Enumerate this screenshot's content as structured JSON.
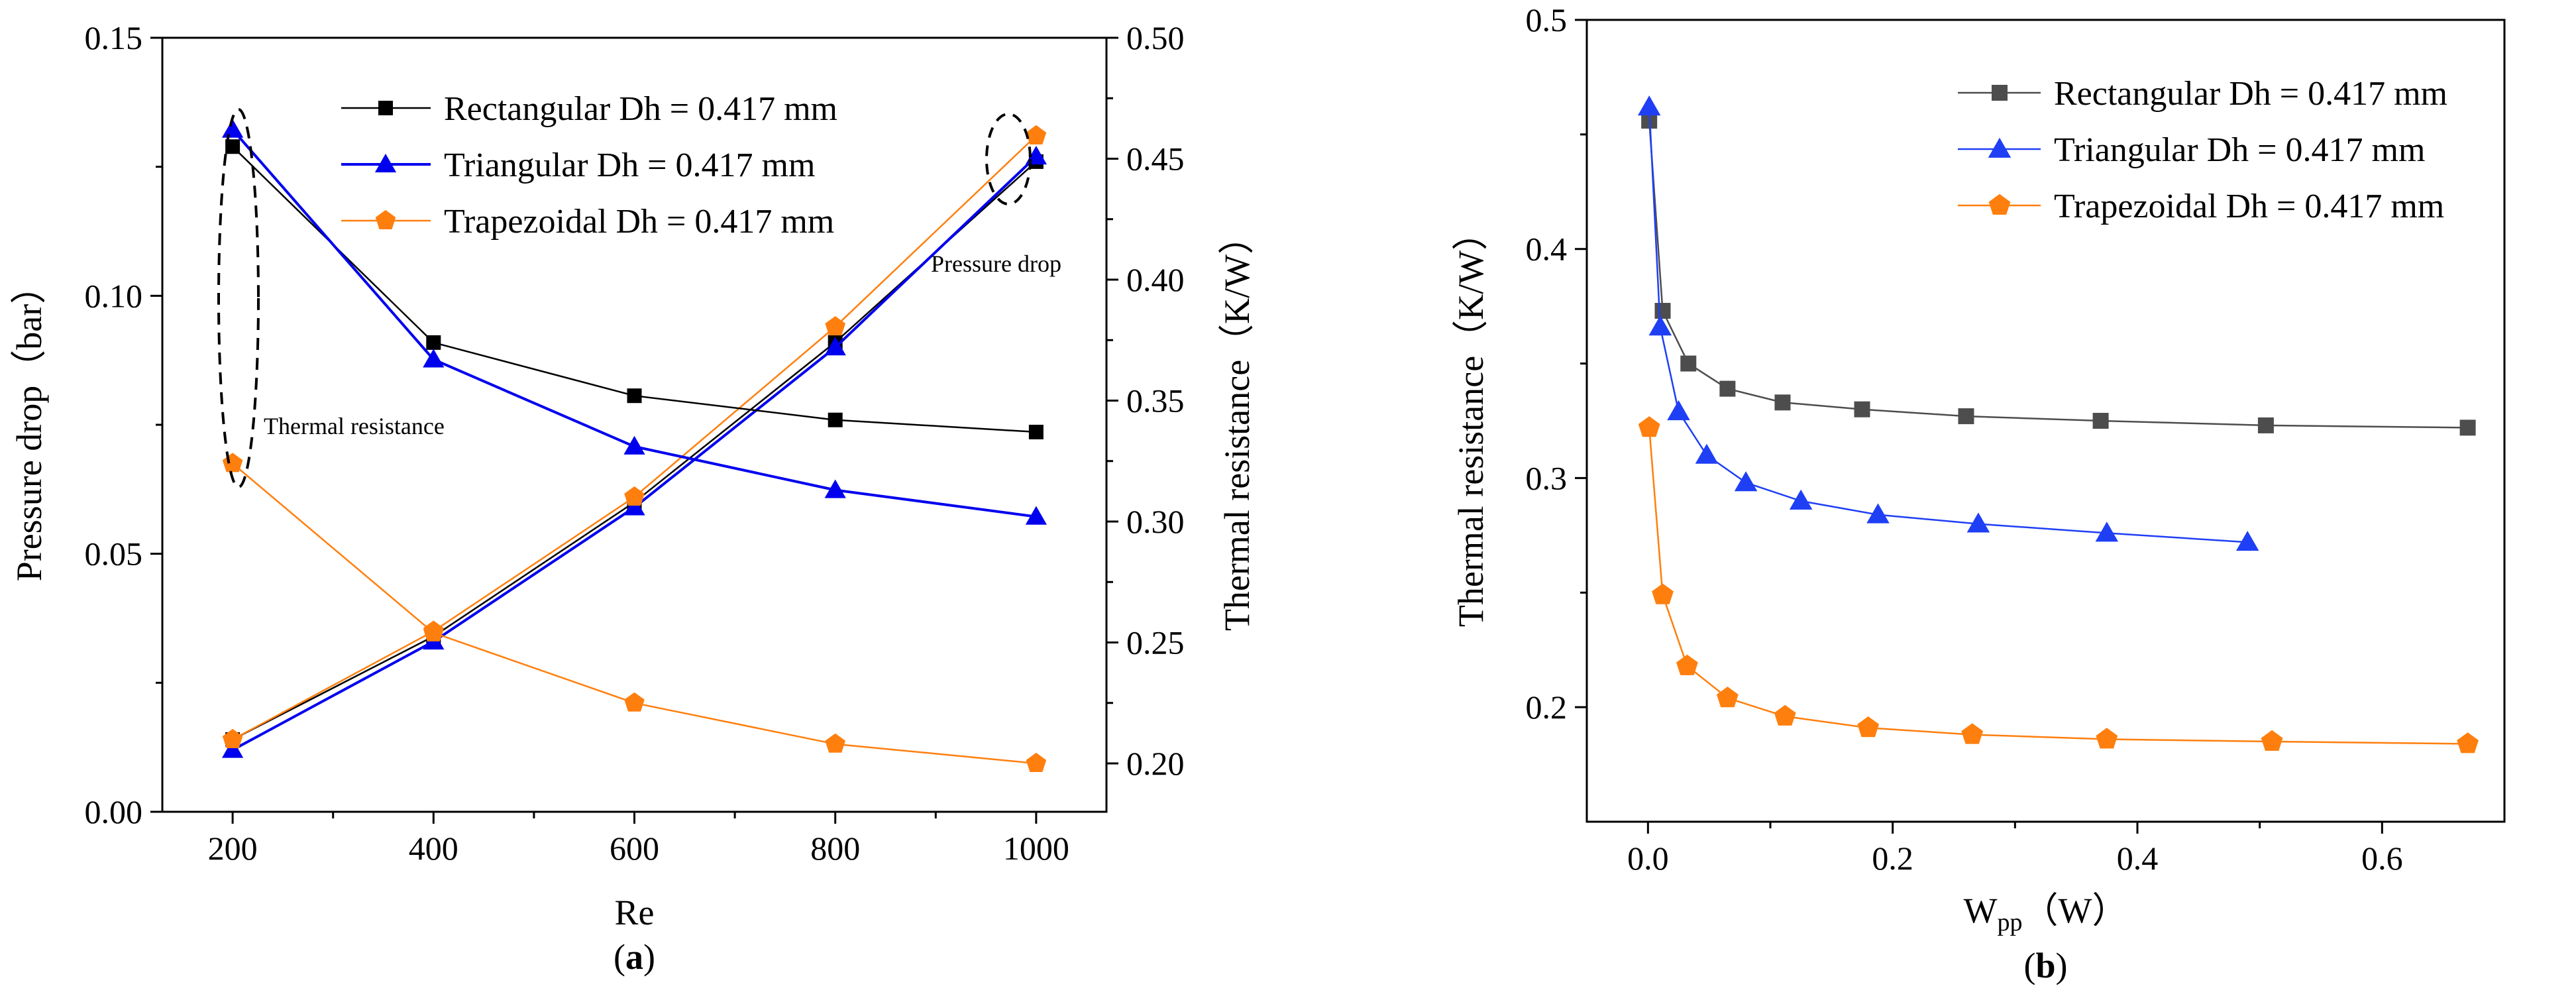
{
  "chart_data": [
    {
      "type": "line",
      "panel_label": "(a)",
      "panel_letter": "a",
      "xlabel": "Re",
      "ylabel_left": "Pressure drop（bar）",
      "ylabel_right": "Thermal resistance（K/W）",
      "x_ticks": [
        200,
        400,
        600,
        800,
        1000
      ],
      "x_tick_labels": [
        "200",
        "400",
        "600",
        "800",
        "1000"
      ],
      "xlim": [
        130,
        1070
      ],
      "y_left_ticks": [
        0.0,
        0.05,
        0.1,
        0.15
      ],
      "y_left_tick_labels": [
        "0.00",
        "0.05",
        "0.10",
        "0.15"
      ],
      "ylim_left": [
        0,
        0.15
      ],
      "y_right_ticks": [
        0.2,
        0.25,
        0.3,
        0.35,
        0.4,
        0.45,
        0.5
      ],
      "y_right_tick_labels": [
        "0.20",
        "0.25",
        "0.30",
        "0.35",
        "0.40",
        "0.45",
        "0.50"
      ],
      "ylim_right": [
        0.18,
        0.5
      ],
      "legend_position": "top-right",
      "annotations": [
        "Thermal resistance",
        "Pressure drop"
      ],
      "series": [
        {
          "name": "Rectangular Dh = 0.417 mm",
          "axis": "left",
          "quantity": "pressure drop",
          "color": "#000000",
          "marker": "square",
          "x": [
            200,
            400,
            600,
            800,
            1000
          ],
          "values": [
            0.014,
            0.034,
            0.06,
            0.091,
            0.126
          ]
        },
        {
          "name": "Triangular   Dh = 0.417 mm",
          "axis": "left",
          "quantity": "pressure drop",
          "color": "#0000ee",
          "marker": "triangle",
          "x": [
            200,
            400,
            600,
            800,
            1000
          ],
          "values": [
            0.012,
            0.033,
            0.059,
            0.09,
            0.127
          ]
        },
        {
          "name": "Trapezoidal Dh = 0.417 mm",
          "axis": "left",
          "quantity": "pressure drop",
          "color": "#ff7f0e",
          "marker": "pentagon",
          "x": [
            200,
            400,
            600,
            800,
            1000
          ],
          "values": [
            0.014,
            0.035,
            0.061,
            0.094,
            0.131
          ]
        },
        {
          "name": "Rectangular Dh = 0.417 mm",
          "axis": "right",
          "quantity": "thermal resistance",
          "color": "#000000",
          "marker": "square",
          "x": [
            200,
            400,
            600,
            800,
            1000
          ],
          "values": [
            0.455,
            0.374,
            0.352,
            0.342,
            0.337
          ]
        },
        {
          "name": "Triangular   Dh = 0.417 mm",
          "axis": "right",
          "quantity": "thermal resistance",
          "color": "#0000ee",
          "marker": "triangle",
          "x": [
            200,
            400,
            600,
            800,
            1000
          ],
          "values": [
            0.462,
            0.367,
            0.331,
            0.313,
            0.302
          ]
        },
        {
          "name": "Trapezoidal Dh = 0.417 mm",
          "axis": "right",
          "quantity": "thermal resistance",
          "color": "#ff7f0e",
          "marker": "pentagon",
          "x": [
            200,
            400,
            600,
            800,
            1000
          ],
          "values": [
            0.324,
            0.254,
            0.225,
            0.208,
            0.2
          ]
        }
      ]
    },
    {
      "type": "line",
      "panel_label": "(b)",
      "panel_letter": "b",
      "xlabel": "Wpp（W）",
      "xlabel_main": "W",
      "xlabel_sub": "pp",
      "xlabel_unit": "（W）",
      "ylabel": "Thermal resistance（K/W）",
      "x_ticks": [
        0.0,
        0.2,
        0.4,
        0.6
      ],
      "x_tick_labels": [
        "0.0",
        "0.2",
        "0.4",
        "0.6"
      ],
      "xlim": [
        -0.05,
        0.7
      ],
      "y_ticks": [
        0.2,
        0.3,
        0.4,
        0.5
      ],
      "y_tick_labels": [
        "0.2",
        "0.3",
        "0.4",
        "0.5"
      ],
      "ylim": [
        0.15,
        0.5
      ],
      "legend_position": "top-right",
      "series": [
        {
          "name": "Rectangular Dh = 0.417 mm",
          "color": "#4d4d4d",
          "marker": "square",
          "x": [
            0.001,
            0.012,
            0.033,
            0.065,
            0.11,
            0.175,
            0.26,
            0.37,
            0.505,
            0.67
          ],
          "values": [
            0.456,
            0.373,
            0.35,
            0.339,
            0.333,
            0.33,
            0.327,
            0.325,
            0.323,
            0.322
          ]
        },
        {
          "name": "Triangular   Dh = 0.417 mm",
          "color": "#1f3ff5",
          "marker": "triangle",
          "x": [
            0.001,
            0.01,
            0.025,
            0.048,
            0.08,
            0.125,
            0.188,
            0.27,
            0.375,
            0.49
          ],
          "values": [
            0.462,
            0.366,
            0.329,
            0.31,
            0.298,
            0.29,
            0.284,
            0.28,
            0.276,
            0.272
          ]
        },
        {
          "name": "Trapezoidal Dh = 0.417 mm",
          "color": "#ff7f0e",
          "marker": "pentagon",
          "x": [
            0.001,
            0.012,
            0.032,
            0.065,
            0.112,
            0.18,
            0.265,
            0.375,
            0.51,
            0.67
          ],
          "values": [
            0.322,
            0.249,
            0.218,
            0.204,
            0.196,
            0.191,
            0.188,
            0.186,
            0.185,
            0.184
          ]
        }
      ]
    }
  ]
}
